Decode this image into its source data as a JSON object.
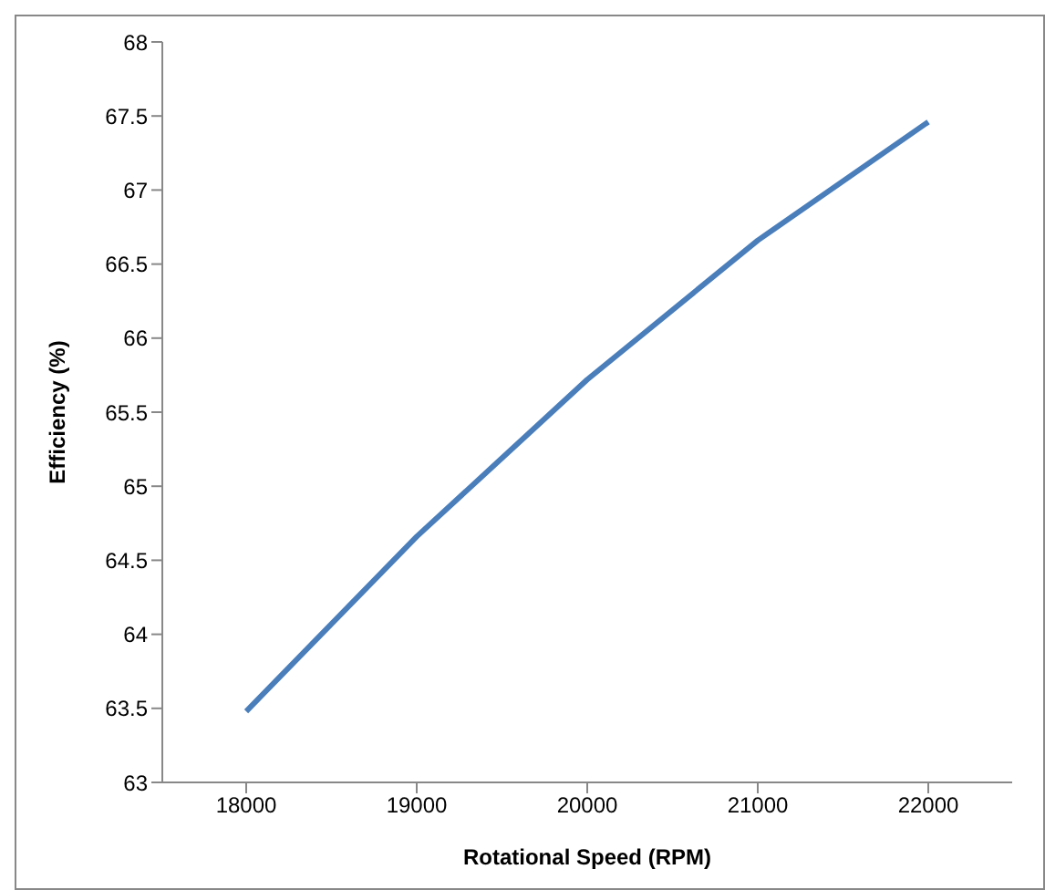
{
  "chart_data": {
    "type": "line",
    "xlabel": "Rotational Speed (RPM)",
    "ylabel": "Efficiency (%)",
    "categories": [
      "18000",
      "19000",
      "20000",
      "21000",
      "22000"
    ],
    "series": [
      {
        "color": "#4a7ebb",
        "values": [
          63.48,
          64.66,
          65.72,
          66.66,
          67.46
        ]
      }
    ],
    "ylim": [
      63,
      68
    ],
    "yticks": [
      63,
      63.5,
      64,
      64.5,
      65,
      65.5,
      66,
      66.5,
      67,
      67.5,
      68
    ],
    "grid": false,
    "legend": false,
    "marker": "none",
    "line_style": "solid"
  }
}
